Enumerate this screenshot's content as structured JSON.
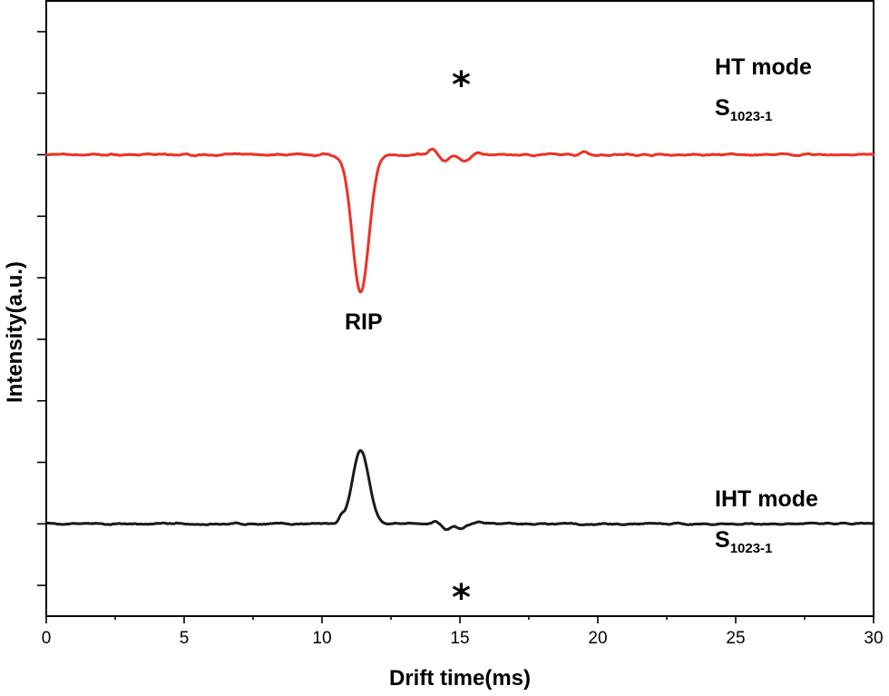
{
  "chart_data": {
    "type": "line",
    "title": "",
    "xlabel": "Drift time(ms)",
    "ylabel": "Intensity(a.u.)",
    "xlim": [
      0,
      30
    ],
    "ylim": [
      -1.5,
      8.5
    ],
    "x_ticks": [
      0,
      5,
      10,
      15,
      20,
      25,
      30
    ],
    "y_ticks_labeled": false,
    "grid": false,
    "legend": "none",
    "series": [
      {
        "name": "",
        "color": "#ee3124",
        "offset": 6.0,
        "baseline": 0,
        "features": [
          {
            "x": 11.4,
            "y": -2.25,
            "width": 0.3
          },
          {
            "x": 14.0,
            "y": 0.09,
            "width": 0.12
          },
          {
            "x": 14.45,
            "y": -0.11,
            "width": 0.15
          },
          {
            "x": 15.2,
            "y": -0.11,
            "width": 0.18
          },
          {
            "x": 15.6,
            "y": 0.05,
            "width": 0.12
          },
          {
            "x": 19.5,
            "y": 0.06,
            "width": 0.12
          }
        ],
        "noise": 0.015
      },
      {
        "name": "",
        "color": "#1a1a1a",
        "offset": 0.0,
        "baseline": 0,
        "features": [
          {
            "x": 10.7,
            "y": 0.08,
            "width": 0.08
          },
          {
            "x": 11.4,
            "y": 1.18,
            "width": 0.3
          },
          {
            "x": 14.1,
            "y": 0.04,
            "width": 0.12
          },
          {
            "x": 14.5,
            "y": -0.09,
            "width": 0.15
          },
          {
            "x": 15.0,
            "y": -0.08,
            "width": 0.15
          },
          {
            "x": 15.7,
            "y": 0.03,
            "width": 0.12
          }
        ],
        "noise": 0.014
      }
    ],
    "annotations": {
      "ht_mode": "HT mode",
      "ht_sample_main": "S",
      "ht_sample_sub": "1023-1",
      "iht_mode": "IHT mode",
      "iht_sample_main": "S",
      "iht_sample_sub": "1023-1",
      "rip": "RIP",
      "star_top": "*",
      "star_bottom": "*"
    }
  }
}
